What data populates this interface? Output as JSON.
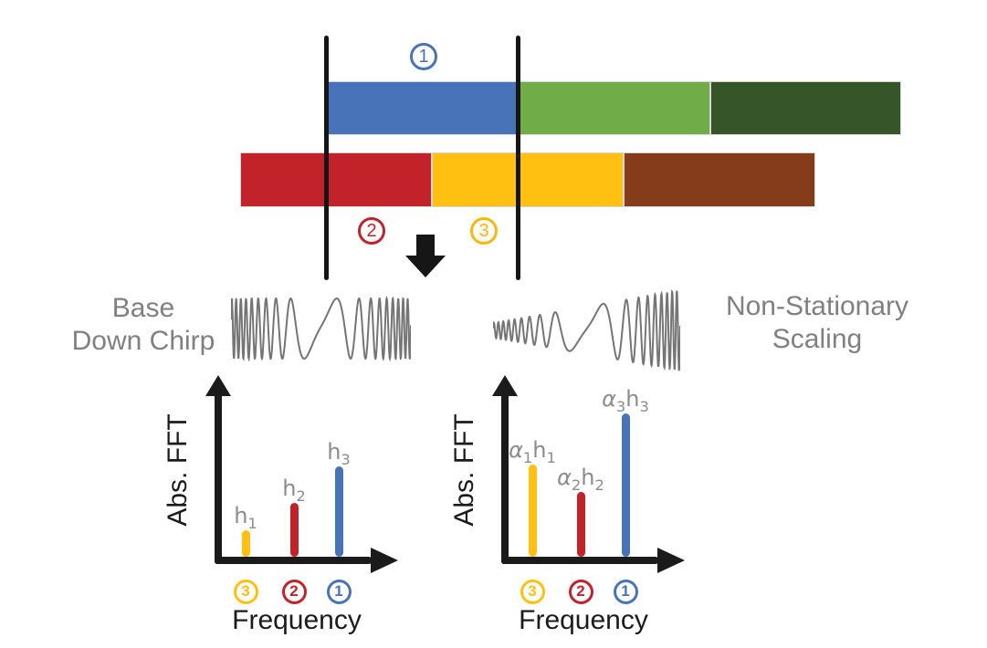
{
  "figure": {
    "left_caption": {
      "line1": "Base",
      "line2": "Down Chirp"
    },
    "right_caption": {
      "line1": "Non-Stationary",
      "line2": "Scaling"
    }
  },
  "signal_bars": {
    "top": {
      "segments": [
        {
          "callout": "1",
          "color": "#4973B8"
        },
        {
          "callout": "",
          "color": "#70AD47"
        },
        {
          "callout": "",
          "color": "#36562A"
        }
      ]
    },
    "bottom": {
      "segments": [
        {
          "callout": "2",
          "color": "#C2222A"
        },
        {
          "callout": "3",
          "color": "#FFC011"
        },
        {
          "callout": "",
          "color": "#843C1B"
        }
      ]
    }
  },
  "callouts": [
    {
      "number": "1",
      "color": "#4973B8",
      "position": "above-top-bar"
    },
    {
      "number": "2",
      "color": "#C2222A",
      "position": "below-bottom-bar-left"
    },
    {
      "number": "3",
      "color": "#FFB60C",
      "position": "below-bottom-bar-right"
    }
  ],
  "waveforms": [
    {
      "name": "base-down-chirp",
      "color": "#757575"
    },
    {
      "name": "non-stationary-scaled-chirp",
      "color": "#757575"
    }
  ],
  "icons": {
    "down_arrow_color": "#161616"
  },
  "colors": {
    "axis": "#1B1B1B",
    "bar_label_gray": "#8C8C8C",
    "caption_gray": "#808080",
    "segment_border": "#D6D6D6"
  },
  "chart_data": [
    {
      "type": "bar",
      "ylabel": "Abs. FFT",
      "xlabel": "Frequency",
      "ylim": [
        0,
        1
      ],
      "grid": false,
      "categories": [
        "3",
        "2",
        "1"
      ],
      "bars": [
        {
          "category": "3",
          "color": "#FFC011",
          "value": 0.16,
          "label": [
            {
              "t": "h",
              "s": "1"
            }
          ],
          "label_text": "h1"
        },
        {
          "category": "2",
          "color": "#C2222A",
          "value": 0.32,
          "label": [
            {
              "t": "h",
              "s": "2"
            }
          ],
          "label_text": "h2"
        },
        {
          "category": "1",
          "color": "#4973B8",
          "value": 0.54,
          "label": [
            {
              "t": "h",
              "s": "3"
            }
          ],
          "label_text": "h3"
        }
      ]
    },
    {
      "type": "bar",
      "ylabel": "Abs. FFT",
      "xlabel": "Frequency",
      "ylim": [
        0,
        1
      ],
      "grid": false,
      "categories": [
        "3",
        "2",
        "1"
      ],
      "bars": [
        {
          "category": "3",
          "color": "#FFC011",
          "value": 0.55,
          "label": [
            {
              "t": "α",
              "s": "1",
              "italic": true
            },
            {
              "t": "h",
              "s": "1"
            }
          ],
          "label_text": "a1h1"
        },
        {
          "category": "2",
          "color": "#C2222A",
          "value": 0.39,
          "label": [
            {
              "t": "α",
              "s": "2",
              "italic": true
            },
            {
              "t": "h",
              "s": "2"
            }
          ],
          "label_text": "a2h2"
        },
        {
          "category": "1",
          "color": "#4973B8",
          "value": 0.86,
          "label": [
            {
              "t": "α",
              "s": "3",
              "italic": true
            },
            {
              "t": "h",
              "s": "3"
            }
          ],
          "label_text": "a3h3"
        }
      ]
    }
  ]
}
